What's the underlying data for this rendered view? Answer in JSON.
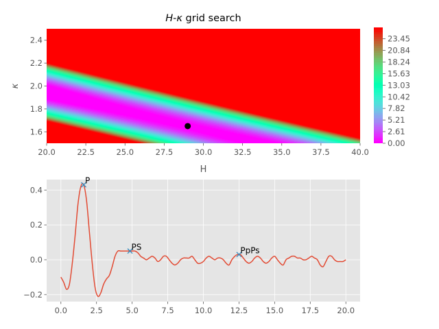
{
  "chart_data": [
    {
      "type": "heatmap",
      "title_prefix": "H",
      "title_kappa": "κ",
      "title_suffix": " grid search",
      "xlabel": "H",
      "ylabel": "κ",
      "xlim": [
        20.0,
        40.0
      ],
      "ylim": [
        1.5,
        2.5
      ],
      "xticks": [
        20.0,
        22.5,
        25.0,
        27.5,
        30.0,
        32.5,
        35.0,
        37.5,
        40.0
      ],
      "xtick_labels": [
        "20.0",
        "22.5",
        "25.0",
        "27.5",
        "30.0",
        "32.5",
        "35.0",
        "37.5",
        "40.0"
      ],
      "yticks": [
        1.6,
        1.8,
        2.0,
        2.2,
        2.4
      ],
      "ytick_labels": [
        "1.6",
        "1.8",
        "2.0",
        "2.2",
        "2.4"
      ],
      "colormap": "rainbow",
      "colorbar_range": [
        0.0,
        26.0
      ],
      "colorbar_ticks": [
        0.0,
        2.61,
        5.21,
        7.82,
        10.42,
        13.03,
        15.63,
        18.24,
        20.84,
        23.45
      ],
      "colorbar_tick_labels": [
        "0.00",
        "2.61",
        "5.21",
        "7.82",
        "10.42",
        "13.03",
        "15.63",
        "18.24",
        "20.84",
        "23.45"
      ],
      "best_fit": {
        "H": 29.0,
        "kappa": 1.65
      },
      "colors": {
        "marker": "#000000"
      }
    },
    {
      "type": "line",
      "xlim": [
        -1.0,
        21.0
      ],
      "ylim": [
        -0.24,
        0.46
      ],
      "xticks": [
        0.0,
        2.5,
        5.0,
        7.5,
        10.0,
        12.5,
        15.0,
        17.5,
        20.0
      ],
      "xtick_labels": [
        "0.0",
        "2.5",
        "5.0",
        "7.5",
        "10.0",
        "12.5",
        "15.0",
        "17.5",
        "20.0"
      ],
      "yticks": [
        -0.2,
        0.0,
        0.2,
        0.4
      ],
      "ytick_labels": [
        "−0.2",
        "0.0",
        "0.2",
        "0.4"
      ],
      "series": [
        {
          "x": [
            0.0,
            0.2,
            0.4,
            0.6,
            0.8,
            1.0,
            1.2,
            1.4,
            1.6,
            1.8,
            2.0,
            2.2,
            2.4,
            2.6,
            2.8,
            3.0,
            3.2,
            3.4,
            3.6,
            3.8,
            4.0,
            4.2,
            4.4,
            4.6,
            4.8,
            5.0,
            5.2,
            5.4,
            5.6,
            5.8,
            6.0,
            6.2,
            6.4,
            6.6,
            6.8,
            7.0,
            7.2,
            7.4,
            7.6,
            7.8,
            8.0,
            8.2,
            8.4,
            8.6,
            8.8,
            9.0,
            9.2,
            9.4,
            9.6,
            9.8,
            10.0,
            10.2,
            10.4,
            10.6,
            10.8,
            11.0,
            11.2,
            11.4,
            11.6,
            11.8,
            12.0,
            12.2,
            12.4,
            12.6,
            12.8,
            13.0,
            13.2,
            13.4,
            13.6,
            13.8,
            14.0,
            14.2,
            14.4,
            14.6,
            14.8,
            15.0,
            15.2,
            15.4,
            15.6,
            15.8,
            16.0,
            16.2,
            16.4,
            16.6,
            16.8,
            17.0,
            17.2,
            17.4,
            17.6,
            17.8,
            18.0,
            18.2,
            18.4,
            18.6,
            18.8,
            19.0,
            19.2,
            19.4,
            19.6,
            19.8,
            20.0
          ],
          "y": [
            -0.1,
            -0.13,
            -0.17,
            -0.14,
            -0.02,
            0.14,
            0.32,
            0.42,
            0.43,
            0.34,
            0.16,
            -0.02,
            -0.16,
            -0.21,
            -0.19,
            -0.14,
            -0.11,
            -0.09,
            -0.04,
            0.02,
            0.05,
            0.05,
            0.05,
            0.05,
            0.05,
            0.05,
            0.05,
            0.04,
            0.02,
            0.01,
            0.0,
            0.01,
            0.02,
            0.01,
            -0.01,
            0.0,
            0.02,
            0.02,
            0.0,
            -0.02,
            -0.03,
            -0.02,
            0.0,
            0.01,
            0.01,
            0.01,
            0.02,
            0.0,
            -0.02,
            -0.02,
            -0.01,
            0.01,
            0.02,
            0.01,
            0.0,
            0.01,
            0.01,
            0.0,
            -0.02,
            -0.03,
            0.0,
            0.02,
            0.03,
            0.03,
            0.01,
            -0.01,
            -0.02,
            -0.01,
            0.01,
            0.02,
            0.01,
            -0.01,
            -0.02,
            -0.01,
            0.01,
            0.02,
            0.0,
            -0.02,
            -0.03,
            0.0,
            0.01,
            0.02,
            0.02,
            0.01,
            0.01,
            0.0,
            0.0,
            0.01,
            0.02,
            0.01,
            0.0,
            -0.03,
            -0.04,
            -0.01,
            0.02,
            0.02,
            0.0,
            -0.01,
            -0.01,
            -0.01,
            0.0
          ]
        }
      ],
      "annotations": [
        {
          "label": "P",
          "x": 1.6,
          "y": 0.43
        },
        {
          "label": "PS",
          "x": 4.85,
          "y": 0.05
        },
        {
          "label": "PpPs",
          "x": 12.5,
          "y": 0.03
        }
      ],
      "colors": {
        "line": "#e24a33",
        "marker": "#348abd"
      }
    }
  ],
  "colors": {
    "axes_bg": "#e5e5e5",
    "grid": "#ffffff",
    "text": "#555555"
  }
}
